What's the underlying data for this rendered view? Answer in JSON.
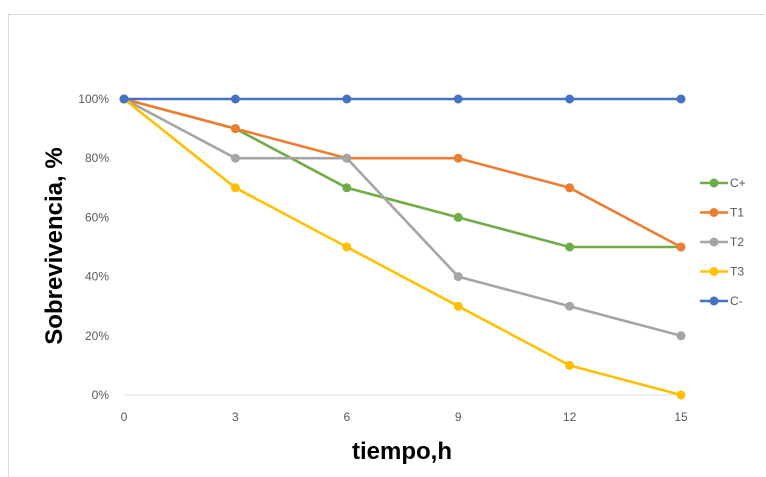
{
  "chart_data": {
    "type": "line",
    "title": "",
    "xlabel": "tiempo,h",
    "ylabel": "Sobrevivencia, %",
    "x": [
      0,
      3,
      6,
      9,
      12,
      15
    ],
    "x_tick_labels": [
      "0",
      "3",
      "6",
      "9",
      "12",
      "15"
    ],
    "y_tick_labels": [
      "0%",
      "20%",
      "40%",
      "60%",
      "80%",
      "100%"
    ],
    "y_ticks": [
      0,
      20,
      40,
      60,
      80,
      100
    ],
    "ylim": [
      0,
      100
    ],
    "grid": false,
    "legend_position": "right",
    "series": [
      {
        "name": "C+",
        "color": "#70ad47",
        "values": [
          100,
          90,
          70,
          60,
          50,
          50
        ]
      },
      {
        "name": "T1",
        "color": "#ed7d31",
        "values": [
          100,
          90,
          80,
          80,
          70,
          50
        ]
      },
      {
        "name": "T2",
        "color": "#a5a5a5",
        "values": [
          100,
          80,
          80,
          40,
          30,
          20
        ]
      },
      {
        "name": "T3",
        "color": "#ffc000",
        "values": [
          100,
          70,
          50,
          30,
          10,
          0
        ]
      },
      {
        "name": "C-",
        "color": "#4472c4",
        "values": [
          100,
          100,
          100,
          100,
          100,
          100
        ]
      }
    ]
  }
}
